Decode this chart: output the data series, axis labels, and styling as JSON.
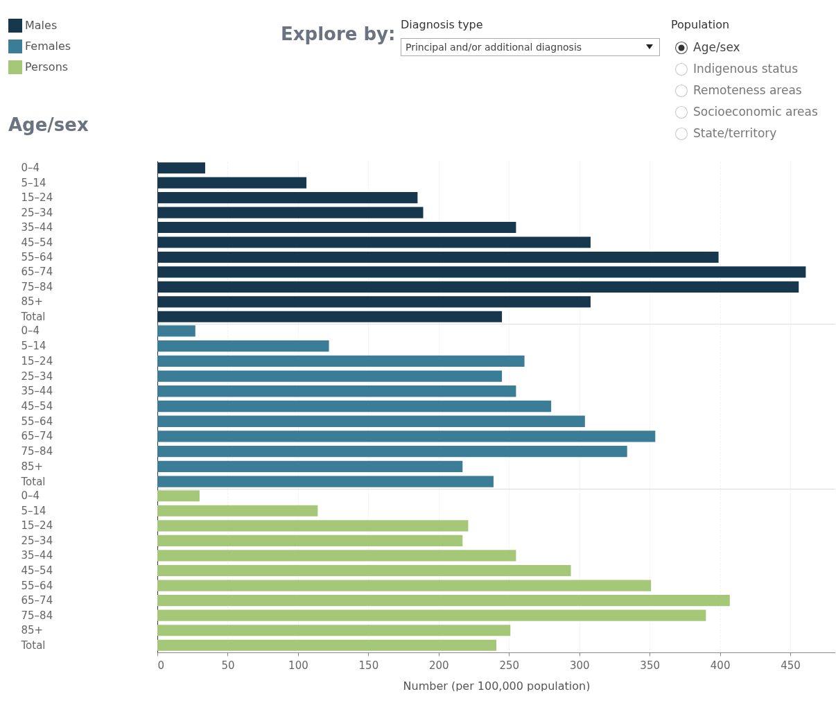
{
  "chart_data": [
    {
      "type": "bar",
      "orientation": "horizontal",
      "title": "Age/sex",
      "legend": "top left",
      "grid": "x",
      "tick_labels": "y",
      "annotations": [
        "Explore by:",
        "Diagnosis type",
        "Principal and/or additional diagnosis",
        "Population",
        "Age/sex",
        "Indigenous status",
        "Remoteness areas",
        "Socioeconomic areas",
        "State/territory"
      ],
      "categories": [
        "0–4",
        "5–14",
        "15–24",
        "25–34",
        "35–44",
        "45–54",
        "55–64",
        "65–74",
        "75–84",
        "85+",
        "Total"
      ],
      "series": [
        {
          "name": "Males",
          "color": "#17374f",
          "values": [
            34,
            106,
            185,
            189,
            255,
            308,
            399,
            461,
            456,
            308,
            245
          ]
        }
      ],
      "xlim": [
        0,
        482
      ],
      "xticks": [
        0,
        50,
        100,
        150,
        200,
        250,
        300,
        350,
        400,
        450
      ]
    },
    {
      "type": "bar",
      "orientation": "horizontal",
      "grid": "x",
      "tick_labels": "y",
      "categories": [
        "0–4",
        "5–14",
        "15–24",
        "25–34",
        "35–44",
        "45–54",
        "55–64",
        "65–74",
        "75–84",
        "85+",
        "Total"
      ],
      "series": [
        {
          "name": "Females",
          "color": "#3b7d97",
          "values": [
            27,
            122,
            261,
            245,
            255,
            280,
            304,
            354,
            334,
            217,
            239
          ]
        }
      ],
      "xlim": [
        0,
        482
      ],
      "xticks": [
        0,
        50,
        100,
        150,
        200,
        250,
        300,
        350,
        400,
        450
      ]
    },
    {
      "type": "bar",
      "orientation": "horizontal",
      "grid": "x",
      "xlabel": "Number (per 100,000 population)",
      "categories": [
        "0–4",
        "5–14",
        "15–24",
        "25–34",
        "35–44",
        "45–54",
        "55–64",
        "65–74",
        "75–84",
        "85+",
        "Total"
      ],
      "series": [
        {
          "name": "Persons",
          "color": "#a5c878",
          "values": [
            30,
            114,
            221,
            217,
            255,
            294,
            351,
            407,
            390,
            251,
            241
          ]
        }
      ],
      "xlim": [
        0,
        482
      ],
      "xticks": [
        0,
        50,
        100,
        150,
        200,
        250,
        300,
        350,
        400,
        450
      ]
    }
  ]
}
